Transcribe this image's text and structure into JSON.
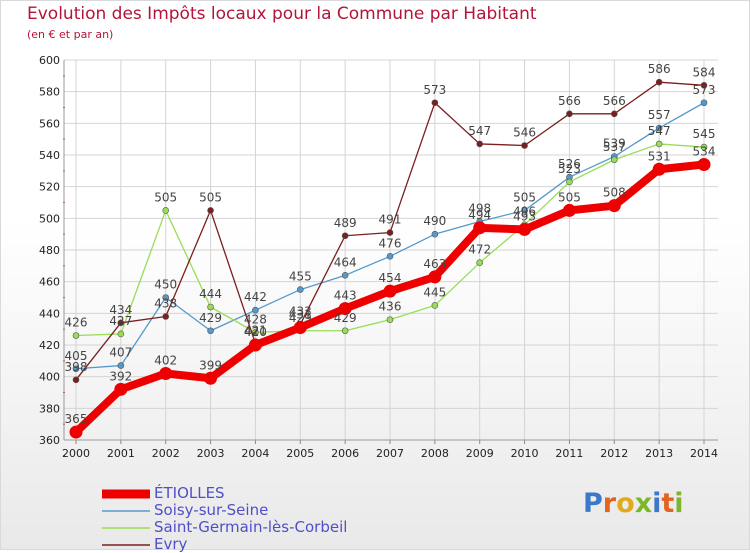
{
  "header": {
    "title": "Evolution des Impôts locaux pour la Commune par Habitant",
    "subtitle": "(en € et par an)"
  },
  "logo": {
    "text": "Proxiti",
    "letters": [
      "P",
      "r",
      "o",
      "x",
      "i",
      "t",
      "i"
    ]
  },
  "colors": {
    "title": "#b3143a",
    "grid": "#d4d4d4",
    "axis_text": "#222222",
    "value_text": "#444444",
    "legend_text": "#4f4fc9",
    "logo": [
      "#3b78c9",
      "#e3641e",
      "#e3a91e",
      "#7cb62b",
      "#3b78c9",
      "#e3641e",
      "#7cb62b"
    ]
  },
  "chart_data": {
    "type": "line",
    "title": "Evolution des Impôts locaux pour la Commune par Habitant",
    "subtitle": "(en € et par an)",
    "xlabel": "",
    "ylabel": "",
    "x": [
      "2000",
      "2001",
      "2002",
      "2003",
      "2004",
      "2005",
      "2006",
      "2007",
      "2008",
      "2009",
      "2010",
      "2011",
      "2012",
      "2013",
      "2014"
    ],
    "yticks": [
      "360",
      "380",
      "400",
      "420",
      "440",
      "460",
      "480",
      "500",
      "520",
      "540",
      "560",
      "580",
      "600"
    ],
    "ylim": [
      360,
      600
    ],
    "grid": true,
    "legend_position": "bottom-left",
    "series": [
      {
        "name": "ÉTIOLLES",
        "color": "#ee0000",
        "bold": true,
        "values": [
          365,
          392,
          402,
          399,
          420,
          431,
          443,
          454,
          463,
          494,
          493,
          505,
          508,
          531,
          534
        ],
        "labels": [
          "365",
          "392",
          "402",
          "399",
          "420",
          "431",
          "443",
          "454",
          "463",
          "494",
          "493",
          "505",
          "508",
          "531",
          "534"
        ]
      },
      {
        "name": "Soisy-sur-Seine",
        "color": "#5599cc",
        "values": [
          405,
          407,
          450,
          429,
          442,
          455,
          464,
          476,
          490,
          498,
          505,
          526,
          539,
          557,
          573
        ],
        "labels": [
          "405",
          "407",
          "450",
          "429",
          "442",
          "455",
          "464",
          "476",
          "490",
          "498",
          "505",
          "526",
          "539",
          "557",
          "573"
        ]
      },
      {
        "name": "Saint-Germain-lès-Corbeil",
        "color": "#99dd55",
        "values": [
          426,
          427,
          505,
          444,
          428,
          429,
          429,
          436,
          445,
          472,
          496,
          523,
          537,
          547,
          545
        ],
        "labels": [
          "426",
          "427",
          "505",
          "444",
          "428",
          "429",
          "429",
          "436",
          "445",
          "472",
          "496",
          "523",
          "537",
          "547",
          "545"
        ]
      },
      {
        "name": "Evry",
        "color": "#7a1f1f",
        "values": [
          398,
          434,
          438,
          505,
          421,
          433,
          489,
          491,
          573,
          547,
          546,
          566,
          566,
          586,
          584
        ],
        "labels": [
          "398",
          "434",
          "438",
          "505",
          "421",
          "433",
          "489",
          "491",
          "573",
          "547",
          "546",
          "566",
          "566",
          "586",
          "584"
        ]
      }
    ]
  }
}
